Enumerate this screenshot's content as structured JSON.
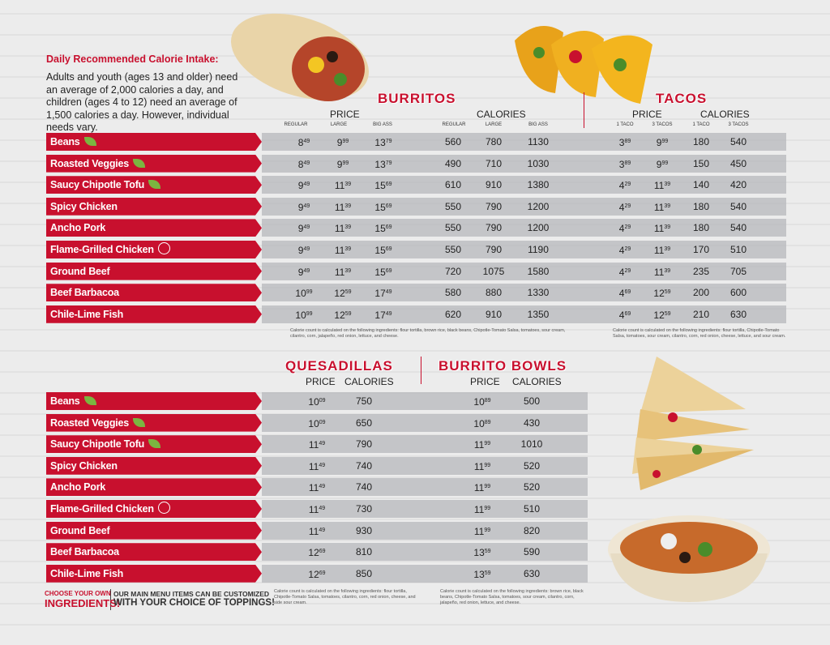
{
  "intake": {
    "title": "Daily Recommended Calorie Intake:",
    "text": "Adults and youth (ages 13 and older) need an average of 2,000 calories a day, and children (ages 4 to 12) need an average of 1,500 calories a day. However, individual needs vary."
  },
  "burritos": {
    "title": "BURRITOS",
    "price_header": "PRICE",
    "calories_header": "CALORIES",
    "sizes": [
      "REGULAR",
      "LARGE",
      "BIG ASS"
    ],
    "note": "Calorie count is calculated on the following ingredients: flour tortilla, brown rice, black beans, Chipotle-Tomato Salsa, tomatoes, sour cream, cilantro, corn, jalapeño, red onion, lettuce, and cheese."
  },
  "tacos": {
    "title": "TACOS",
    "price_header": "PRICE",
    "calories_header": "CALORIES",
    "sizes": [
      "1 TACO",
      "3 TACOS"
    ],
    "note": "Calorie count is calculated on the following ingredients: flour tortilla, Chipotle-Tomato Salsa, tomatoes, sour cream, cilantro, corn, red onion, cheese, lettuce, and sour cream."
  },
  "top_rows": [
    {
      "name": "Beans",
      "veg": true,
      "prices": [
        [
          "8",
          "49"
        ],
        [
          "9",
          "99"
        ],
        [
          "13",
          "79"
        ]
      ],
      "calories": [
        560,
        780,
        1130
      ],
      "taco_prices": [
        [
          "3",
          "89"
        ],
        [
          "9",
          "99"
        ]
      ],
      "taco_calories": [
        180,
        540
      ]
    },
    {
      "name": "Roasted Veggies",
      "veg": true,
      "prices": [
        [
          "8",
          "49"
        ],
        [
          "9",
          "99"
        ],
        [
          "13",
          "79"
        ]
      ],
      "calories": [
        490,
        710,
        1030
      ],
      "taco_prices": [
        [
          "3",
          "89"
        ],
        [
          "9",
          "99"
        ]
      ],
      "taco_calories": [
        150,
        450
      ]
    },
    {
      "name": "Saucy Chipotle Tofu",
      "veg": true,
      "prices": [
        [
          "9",
          "49"
        ],
        [
          "11",
          "39"
        ],
        [
          "15",
          "69"
        ]
      ],
      "calories": [
        610,
        910,
        1380
      ],
      "taco_prices": [
        [
          "4",
          "29"
        ],
        [
          "11",
          "39"
        ]
      ],
      "taco_calories": [
        140,
        420
      ]
    },
    {
      "name": "Spicy Chicken",
      "prices": [
        [
          "9",
          "49"
        ],
        [
          "11",
          "39"
        ],
        [
          "15",
          "69"
        ]
      ],
      "calories": [
        550,
        790,
        1200
      ],
      "taco_prices": [
        [
          "4",
          "29"
        ],
        [
          "11",
          "39"
        ]
      ],
      "taco_calories": [
        180,
        540
      ]
    },
    {
      "name": "Ancho Pork",
      "prices": [
        [
          "9",
          "49"
        ],
        [
          "11",
          "39"
        ],
        [
          "15",
          "69"
        ]
      ],
      "calories": [
        550,
        790,
        1200
      ],
      "taco_prices": [
        [
          "4",
          "29"
        ],
        [
          "11",
          "39"
        ]
      ],
      "taco_calories": [
        180,
        540
      ]
    },
    {
      "name": "Flame-Grilled Chicken",
      "badge": true,
      "prices": [
        [
          "9",
          "49"
        ],
        [
          "11",
          "39"
        ],
        [
          "15",
          "69"
        ]
      ],
      "calories": [
        550,
        790,
        1190
      ],
      "taco_prices": [
        [
          "4",
          "29"
        ],
        [
          "11",
          "39"
        ]
      ],
      "taco_calories": [
        170,
        510
      ]
    },
    {
      "name": "Ground Beef",
      "prices": [
        [
          "9",
          "49"
        ],
        [
          "11",
          "39"
        ],
        [
          "15",
          "69"
        ]
      ],
      "calories": [
        720,
        1075,
        1580
      ],
      "taco_prices": [
        [
          "4",
          "29"
        ],
        [
          "11",
          "39"
        ]
      ],
      "taco_calories": [
        235,
        705
      ]
    },
    {
      "name": "Beef Barbacoa",
      "prices": [
        [
          "10",
          "99"
        ],
        [
          "12",
          "59"
        ],
        [
          "17",
          "49"
        ]
      ],
      "calories": [
        580,
        880,
        1330
      ],
      "taco_prices": [
        [
          "4",
          "69"
        ],
        [
          "12",
          "59"
        ]
      ],
      "taco_calories": [
        200,
        600
      ]
    },
    {
      "name": "Chile-Lime Fish",
      "prices": [
        [
          "10",
          "99"
        ],
        [
          "12",
          "59"
        ],
        [
          "17",
          "49"
        ]
      ],
      "calories": [
        620,
        910,
        1350
      ],
      "taco_prices": [
        [
          "4",
          "69"
        ],
        [
          "12",
          "59"
        ]
      ],
      "taco_calories": [
        210,
        630
      ]
    }
  ],
  "quesadillas": {
    "title": "QUESADILLAS",
    "price_header": "PRICE",
    "calories_header": "CALORIES",
    "note": "Calorie count is calculated on the following ingredients: flour tortilla, Chipotle-Tomato Salsa, tomatoes, cilantro, corn, red onion, cheese, and side sour cream."
  },
  "bowls": {
    "title": "BURRITO BOWLS",
    "price_header": "PRICE",
    "calories_header": "CALORIES",
    "note": "Calorie count is calculated on the following ingredients: brown rice, black beans, Chipotle-Tomato Salsa, tomatoes, sour cream, cilantro, corn, jalapeño, red onion, lettuce, and cheese."
  },
  "bottom_rows": [
    {
      "name": "Beans",
      "veg": true,
      "q_price": [
        "10",
        "09"
      ],
      "q_calories": 750,
      "b_price": [
        "10",
        "89"
      ],
      "b_calories": 500
    },
    {
      "name": "Roasted Veggies",
      "veg": true,
      "q_price": [
        "10",
        "09"
      ],
      "q_calories": 650,
      "b_price": [
        "10",
        "89"
      ],
      "b_calories": 430
    },
    {
      "name": "Saucy Chipotle Tofu",
      "veg": true,
      "q_price": [
        "11",
        "49"
      ],
      "q_calories": 790,
      "b_price": [
        "11",
        "99"
      ],
      "b_calories": 1010
    },
    {
      "name": "Spicy Chicken",
      "q_price": [
        "11",
        "49"
      ],
      "q_calories": 740,
      "b_price": [
        "11",
        "99"
      ],
      "b_calories": 520
    },
    {
      "name": "Ancho Pork",
      "q_price": [
        "11",
        "49"
      ],
      "q_calories": 740,
      "b_price": [
        "11",
        "99"
      ],
      "b_calories": 520
    },
    {
      "name": "Flame-Grilled Chicken",
      "badge": true,
      "q_price": [
        "11",
        "49"
      ],
      "q_calories": 730,
      "b_price": [
        "11",
        "99"
      ],
      "b_calories": 510
    },
    {
      "name": "Ground Beef",
      "q_price": [
        "11",
        "49"
      ],
      "q_calories": 930,
      "b_price": [
        "11",
        "99"
      ],
      "b_calories": 820
    },
    {
      "name": "Beef Barbacoa",
      "q_price": [
        "12",
        "69"
      ],
      "q_calories": 810,
      "b_price": [
        "13",
        "59"
      ],
      "b_calories": 590
    },
    {
      "name": "Chile-Lime Fish",
      "q_price": [
        "12",
        "69"
      ],
      "q_calories": 850,
      "b_price": [
        "13",
        "59"
      ],
      "b_calories": 630
    }
  ],
  "footer": {
    "choose": "CHOOSE YOUR OWN",
    "ingredients": "INGREDIENTS!",
    "line1": "OUR MAIN MENU ITEMS CAN BE CUSTOMIZED",
    "line2": "WITH YOUR CHOICE OF TOPPINGS!"
  }
}
